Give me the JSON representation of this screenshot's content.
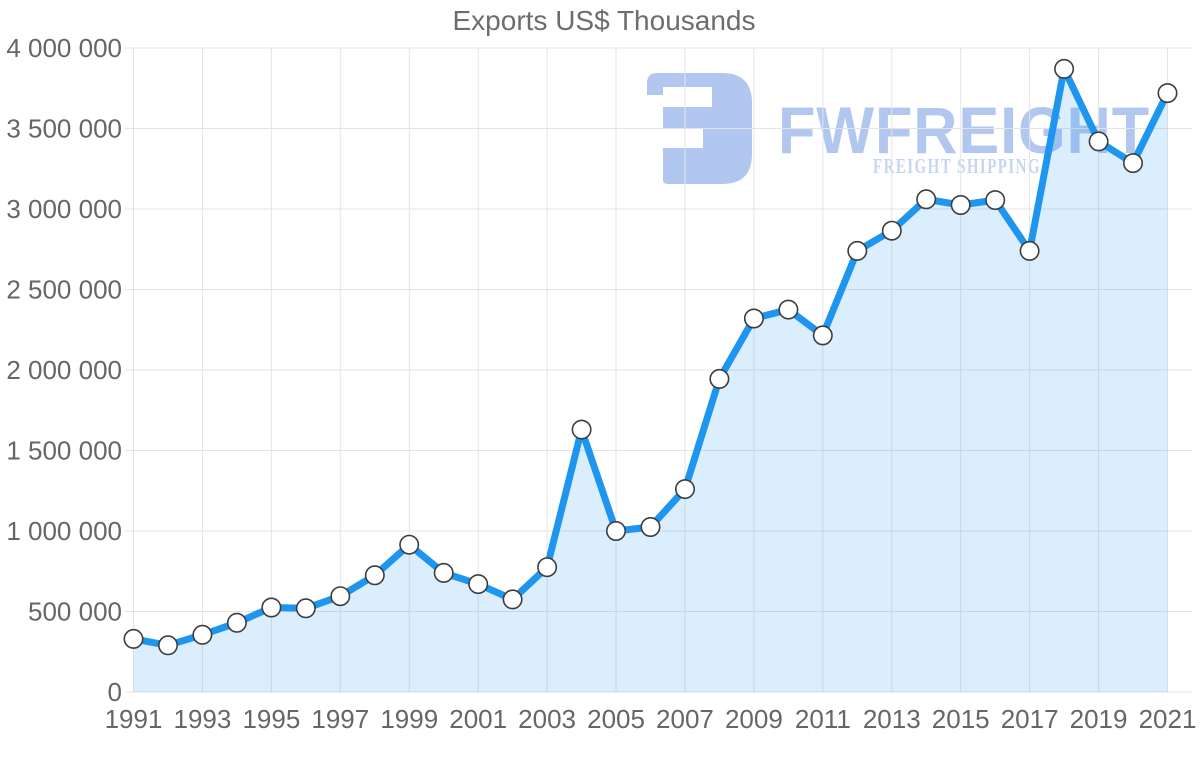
{
  "title": "Exports US$ Thousands",
  "watermark": {
    "brand": "FWFREIGHT",
    "tagline": "FREIGHT SHIPPING",
    "logo_color": "#b2c7f0",
    "brand_color": "#b2c7f0",
    "tagline_color": "#c6d5f5"
  },
  "style": {
    "background": "#ffffff",
    "grid_color": "#e4e4e4",
    "line_color": "#1e96f0",
    "area_fill": "rgba(30, 150, 240, 0.16)",
    "marker_fill": "#ffffff",
    "marker_stroke": "#3d3d3d",
    "axis_text_color": "#666666",
    "title_color": "#6d6d6d"
  },
  "chart_data": {
    "type": "area",
    "title": "Exports US$ Thousands",
    "xlabel": "",
    "ylabel": "",
    "grid": true,
    "legend": "none",
    "ylim": [
      0,
      4000000
    ],
    "x": [
      1991,
      1992,
      1993,
      1994,
      1995,
      1996,
      1997,
      1998,
      1999,
      2000,
      2001,
      2002,
      2003,
      2004,
      2005,
      2006,
      2007,
      2008,
      2009,
      2010,
      2011,
      2012,
      2013,
      2014,
      2015,
      2016,
      2017,
      2018,
      2019,
      2020,
      2021
    ],
    "series": [
      {
        "name": "Exports US$ Thousands",
        "values": [
          330000,
          290000,
          355000,
          430000,
          525000,
          520000,
          595000,
          725000,
          915000,
          740000,
          670000,
          575000,
          775000,
          1630000,
          1000000,
          1025000,
          1260000,
          1945000,
          2320000,
          2375000,
          2215000,
          2740000,
          2865000,
          3060000,
          3025000,
          3055000,
          2740000,
          3870000,
          3420000,
          3285000,
          3720000
        ]
      }
    ],
    "y_ticks": [
      {
        "value": 0,
        "label": "0"
      },
      {
        "value": 500000,
        "label": "500 000"
      },
      {
        "value": 1000000,
        "label": "1 000 000"
      },
      {
        "value": 1500000,
        "label": "1 500 000"
      },
      {
        "value": 2000000,
        "label": "2 000 000"
      },
      {
        "value": 2500000,
        "label": "2 500 000"
      },
      {
        "value": 3000000,
        "label": "3 000 000"
      },
      {
        "value": 3500000,
        "label": "3 500 000"
      },
      {
        "value": 4000000,
        "label": "4 000 000"
      }
    ],
    "x_ticks": [
      {
        "value": 1991,
        "label": "1991"
      },
      {
        "value": 1993,
        "label": "1993"
      },
      {
        "value": 1995,
        "label": "1995"
      },
      {
        "value": 1997,
        "label": "1997"
      },
      {
        "value": 1999,
        "label": "1999"
      },
      {
        "value": 2001,
        "label": "2001"
      },
      {
        "value": 2003,
        "label": "2003"
      },
      {
        "value": 2005,
        "label": "2005"
      },
      {
        "value": 2007,
        "label": "2007"
      },
      {
        "value": 2009,
        "label": "2009"
      },
      {
        "value": 2011,
        "label": "2011"
      },
      {
        "value": 2013,
        "label": "2013"
      },
      {
        "value": 2015,
        "label": "2015"
      },
      {
        "value": 2017,
        "label": "2017"
      },
      {
        "value": 2019,
        "label": "2019"
      },
      {
        "value": 2021,
        "label": "2021"
      }
    ]
  }
}
